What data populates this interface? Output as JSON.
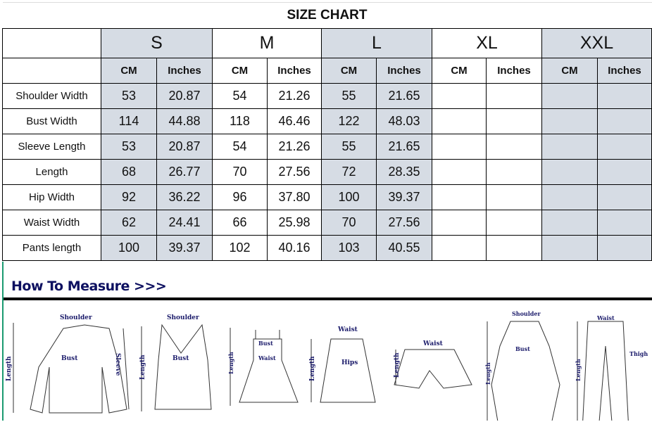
{
  "title": "SIZE CHART",
  "sizes": [
    "S",
    "M",
    "L",
    "XL",
    "XXL"
  ],
  "units": [
    "CM",
    "Inches"
  ],
  "rows": [
    {
      "label": "Shoulder Width",
      "values": [
        "53",
        "20.87",
        "54",
        "21.26",
        "55",
        "21.65",
        "",
        "",
        "",
        ""
      ]
    },
    {
      "label": "Bust Width",
      "values": [
        "114",
        "44.88",
        "118",
        "46.46",
        "122",
        "48.03",
        "",
        "",
        "",
        ""
      ]
    },
    {
      "label": "Sleeve Length",
      "values": [
        "53",
        "20.87",
        "54",
        "21.26",
        "55",
        "21.65",
        "",
        "",
        "",
        ""
      ]
    },
    {
      "label": "Length",
      "values": [
        "68",
        "26.77",
        "70",
        "27.56",
        "72",
        "28.35",
        "",
        "",
        "",
        ""
      ]
    },
    {
      "label": "Hip Width",
      "values": [
        "92",
        "36.22",
        "96",
        "37.80",
        "100",
        "39.37",
        "",
        "",
        "",
        ""
      ]
    },
    {
      "label": "Waist Width",
      "values": [
        "62",
        "24.41",
        "66",
        "25.98",
        "70",
        "27.56",
        "",
        "",
        "",
        ""
      ]
    },
    {
      "label": "Pants length",
      "values": [
        "100",
        "39.37",
        "102",
        "40.16",
        "103",
        "40.55",
        "",
        "",
        "",
        ""
      ]
    }
  ],
  "colors": {
    "size_label": "#ff0000",
    "shaded": "#d6dce4",
    "measure_title": "#0d1060"
  },
  "measure": {
    "title": "How To Measure >>>",
    "labels": {
      "shoulder": "Shoulder",
      "bust": "Bust",
      "sleeve": "Sleeve",
      "length": "Length",
      "waist": "Waist",
      "hips": "Hips",
      "thigh": "Thigh"
    }
  }
}
